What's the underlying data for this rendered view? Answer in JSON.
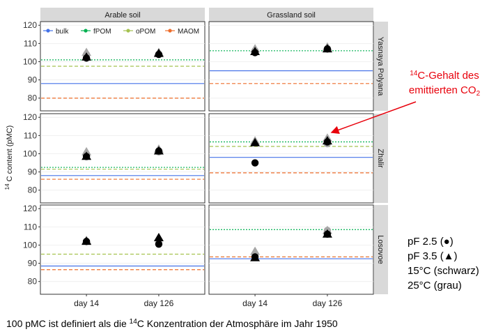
{
  "chart_data": {
    "type": "scatter",
    "ylabel_sup": "14",
    "ylabel_rest": " C content (pMC)",
    "ylim": [
      73,
      122
    ],
    "yticks": [
      80,
      90,
      100,
      110,
      120
    ],
    "categories": [
      "day 14",
      "day 126"
    ],
    "column_titles": [
      "Arable soil",
      "Grassland soil"
    ],
    "row_titles": [
      "Yasnaya Polyana",
      "Zhalir",
      "Losovoe"
    ],
    "legend_position": "top-left",
    "references": [
      {
        "name": "bulk",
        "color": "#4472e8",
        "dash": "solid"
      },
      {
        "name": "fPOM",
        "color": "#00b050",
        "dash": "dotted"
      },
      {
        "name": "oPOM",
        "color": "#a5c250",
        "dash": "dashed"
      },
      {
        "name": "MAOM",
        "color": "#ed6d2b",
        "dash": "dashed"
      }
    ],
    "panels": [
      {
        "row": 0,
        "col": 0,
        "bulk": 88,
        "fPOM": 101,
        "oPOM": 97.5,
        "MAOM": 80,
        "points": [
          {
            "x": "day 14",
            "shape": "circle",
            "temp": "25°C",
            "y": 104
          },
          {
            "x": "day 14",
            "shape": "triangle",
            "temp": "25°C",
            "y": 105
          },
          {
            "x": "day 14",
            "shape": "circle",
            "temp": "15°C",
            "y": 102
          },
          {
            "x": "day 14",
            "shape": "triangle",
            "temp": "15°C",
            "y": 102.5
          },
          {
            "x": "day 126",
            "shape": "circle",
            "temp": "25°C",
            "y": 104
          },
          {
            "x": "day 126",
            "shape": "triangle",
            "temp": "25°C",
            "y": 105
          },
          {
            "x": "day 126",
            "shape": "circle",
            "temp": "15°C",
            "y": 104
          },
          {
            "x": "day 126",
            "shape": "triangle",
            "temp": "15°C",
            "y": 104.5
          }
        ]
      },
      {
        "row": 0,
        "col": 1,
        "bulk": 95,
        "fPOM": 106,
        "oPOM": null,
        "MAOM": 88,
        "points": [
          {
            "x": "day 14",
            "shape": "circle",
            "temp": "25°C",
            "y": 106
          },
          {
            "x": "day 14",
            "shape": "triangle",
            "temp": "25°C",
            "y": 107
          },
          {
            "x": "day 14",
            "shape": "circle",
            "temp": "15°C",
            "y": 105
          },
          {
            "x": "day 14",
            "shape": "triangle",
            "temp": "15°C",
            "y": 105.5
          },
          {
            "x": "day 126",
            "shape": "circle",
            "temp": "25°C",
            "y": 107
          },
          {
            "x": "day 126",
            "shape": "triangle",
            "temp": "25°C",
            "y": 108
          },
          {
            "x": "day 126",
            "shape": "circle",
            "temp": "15°C",
            "y": 107
          },
          {
            "x": "day 126",
            "shape": "triangle",
            "temp": "15°C",
            "y": 107
          }
        ]
      },
      {
        "row": 1,
        "col": 0,
        "bulk": 88,
        "fPOM": 92.5,
        "oPOM": 91.5,
        "MAOM": 86,
        "points": [
          {
            "x": "day 14",
            "shape": "circle",
            "temp": "25°C",
            "y": 99
          },
          {
            "x": "day 14",
            "shape": "triangle",
            "temp": "25°C",
            "y": 101
          },
          {
            "x": "day 14",
            "shape": "circle",
            "temp": "15°C",
            "y": 98.5
          },
          {
            "x": "day 14",
            "shape": "triangle",
            "temp": "15°C",
            "y": 98.5
          },
          {
            "x": "day 126",
            "shape": "circle",
            "temp": "25°C",
            "y": 101
          },
          {
            "x": "day 126",
            "shape": "triangle",
            "temp": "25°C",
            "y": 102.5
          },
          {
            "x": "day 126",
            "shape": "circle",
            "temp": "15°C",
            "y": 101.5
          },
          {
            "x": "day 126",
            "shape": "triangle",
            "temp": "15°C",
            "y": 101.5
          }
        ]
      },
      {
        "row": 1,
        "col": 1,
        "bulk": 98,
        "fPOM": 106.5,
        "oPOM": 104,
        "MAOM": 89.5,
        "points": [
          {
            "x": "day 14",
            "shape": "circle",
            "temp": "25°C",
            "y": 95
          },
          {
            "x": "day 14",
            "shape": "triangle",
            "temp": "25°C",
            "y": 107
          },
          {
            "x": "day 14",
            "shape": "circle",
            "temp": "15°C",
            "y": 95
          },
          {
            "x": "day 14",
            "shape": "triangle",
            "temp": "15°C",
            "y": 106
          },
          {
            "x": "day 126",
            "shape": "circle",
            "temp": "25°C",
            "y": 105.5
          },
          {
            "x": "day 126",
            "shape": "triangle",
            "temp": "25°C",
            "y": 108.5
          },
          {
            "x": "day 126",
            "shape": "circle",
            "temp": "15°C",
            "y": 106.5
          },
          {
            "x": "day 126",
            "shape": "triangle",
            "temp": "15°C",
            "y": 107
          }
        ]
      },
      {
        "row": 2,
        "col": 0,
        "bulk": 88.5,
        "fPOM": null,
        "oPOM": 95,
        "MAOM": 86.5,
        "points": [
          {
            "x": "day 14",
            "shape": "circle",
            "temp": "25°C",
            "y": 102
          },
          {
            "x": "day 14",
            "shape": "triangle",
            "temp": "25°C",
            "y": 102.5
          },
          {
            "x": "day 14",
            "shape": "circle",
            "temp": "15°C",
            "y": 102
          },
          {
            "x": "day 14",
            "shape": "triangle",
            "temp": "15°C",
            "y": 102
          },
          {
            "x": "day 126",
            "shape": "circle",
            "temp": "25°C",
            "y": 101
          },
          {
            "x": "day 126",
            "shape": "triangle",
            "temp": "25°C",
            "y": 104
          },
          {
            "x": "day 126",
            "shape": "circle",
            "temp": "15°C",
            "y": 100.5
          },
          {
            "x": "day 126",
            "shape": "triangle",
            "temp": "15°C",
            "y": 104
          }
        ]
      },
      {
        "row": 2,
        "col": 1,
        "bulk": 92.5,
        "fPOM": 108.5,
        "oPOM": 93.5,
        "MAOM": 93.5,
        "points": [
          {
            "x": "day 14",
            "shape": "circle",
            "temp": "25°C",
            "y": 95
          },
          {
            "x": "day 14",
            "shape": "triangle",
            "temp": "25°C",
            "y": 96.5
          },
          {
            "x": "day 14",
            "shape": "circle",
            "temp": "15°C",
            "y": 93.5
          },
          {
            "x": "day 14",
            "shape": "triangle",
            "temp": "15°C",
            "y": 93
          },
          {
            "x": "day 126",
            "shape": "circle",
            "temp": "25°C",
            "y": 108
          },
          {
            "x": "day 126",
            "shape": "triangle",
            "temp": "25°C",
            "y": 108
          },
          {
            "x": "day 126",
            "shape": "circle",
            "temp": "15°C",
            "y": 106
          },
          {
            "x": "day 126",
            "shape": "triangle",
            "temp": "15°C",
            "y": 106
          }
        ]
      }
    ],
    "marker_colors": {
      "15°C": "#000000",
      "25°C": "#a6a6a6"
    }
  },
  "annotation": {
    "line1_prefix_sup": "14",
    "line1_rest": "C-Gehalt des",
    "line2_main": "emittierten CO",
    "line2_sub": "2"
  },
  "side_notes": [
    "pF 2.5 (●)",
    "pF 3.5 (▲)",
    "15°C (schwarz)",
    "25°C (grau)"
  ],
  "footnote": {
    "before": "100 pMC ist definiert als die ",
    "sup": "14",
    "after": "C Konzentration der Atmosphäre im Jahr 1950"
  }
}
